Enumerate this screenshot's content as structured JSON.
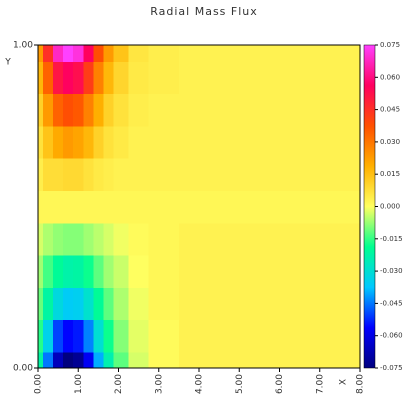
{
  "chart_data": {
    "type": "heatmap",
    "title": "Radial Mass Flux",
    "x_label": "X",
    "y_label": "Y",
    "x": [
      0,
      0.25,
      0.5,
      0.75,
      1.0,
      1.25,
      1.5,
      1.75,
      2.0,
      2.5,
      3,
      4,
      5,
      6,
      7,
      8
    ],
    "y": [
      0,
      0.1,
      0.2,
      0.3,
      0.4,
      0.5,
      0.6,
      0.7,
      0.8,
      0.9,
      1.0
    ],
    "z": [
      [
        -0.022,
        -0.045,
        -0.066,
        -0.075,
        -0.072,
        -0.058,
        -0.04,
        -0.024,
        -0.012,
        -0.003,
        0.001,
        0.003,
        0.003,
        0.003,
        0.003,
        0.003
      ],
      [
        -0.016,
        -0.034,
        -0.05,
        -0.056,
        -0.054,
        -0.044,
        -0.03,
        -0.018,
        -0.009,
        -0.002,
        0.001,
        0.003,
        0.003,
        0.003,
        0.003,
        0.003
      ],
      [
        -0.011,
        -0.022,
        -0.032,
        -0.036,
        -0.035,
        -0.029,
        -0.02,
        -0.012,
        -0.006,
        -0.001,
        0.002,
        0.003,
        0.003,
        0.003,
        0.003,
        0.003
      ],
      [
        -0.007,
        -0.014,
        -0.02,
        -0.023,
        -0.022,
        -0.018,
        -0.012,
        -0.007,
        -0.004,
        0,
        0.002,
        0.003,
        0.003,
        0.003,
        0.003,
        0.003
      ],
      [
        -0.003,
        -0.006,
        -0.008,
        -0.009,
        -0.009,
        -0.007,
        -0.005,
        -0.003,
        -0.001,
        0.001,
        0.002,
        0.003,
        0.003,
        0.003,
        0.003,
        0.003
      ],
      [
        0.002,
        0.002,
        0.002,
        0.002,
        0.002,
        0.002,
        0.002,
        0.002,
        0.002,
        0.002,
        0.002,
        0.002,
        0.002,
        0.002,
        0.002,
        0.002
      ],
      [
        0.004,
        0.008,
        0.008,
        0.009,
        0.009,
        0.007,
        0.005,
        0.004,
        0.003,
        0.003,
        0.003,
        0.003,
        0.003,
        0.003,
        0.003,
        0.003
      ],
      [
        0.007,
        0.014,
        0.02,
        0.023,
        0.021,
        0.017,
        0.011,
        0.007,
        0.005,
        0.003,
        0.003,
        0.003,
        0.003,
        0.003,
        0.003,
        0.003
      ],
      [
        0.011,
        0.023,
        0.034,
        0.038,
        0.036,
        0.028,
        0.019,
        0.011,
        0.007,
        0.004,
        0.003,
        0.003,
        0.003,
        0.003,
        0.003,
        0.003
      ],
      [
        0.017,
        0.034,
        0.051,
        0.056,
        0.053,
        0.042,
        0.028,
        0.017,
        0.01,
        0.005,
        0.004,
        0.003,
        0.003,
        0.003,
        0.003,
        0.003
      ],
      [
        0.023,
        0.045,
        0.068,
        0.075,
        0.071,
        0.056,
        0.038,
        0.023,
        0.014,
        0.006,
        0.004,
        0.003,
        0.003,
        0.003,
        0.003,
        0.003
      ]
    ],
    "xlim": [
      0,
      8
    ],
    "ylim": [
      0,
      1
    ],
    "zlim": [
      -0.075,
      0.075
    ],
    "xticks": [
      {
        "value": 0,
        "label": "0.00"
      },
      {
        "value": 1,
        "label": "1.00"
      },
      {
        "value": 2,
        "label": "2.00"
      },
      {
        "value": 3,
        "label": "3.00"
      },
      {
        "value": 4,
        "label": "4.00"
      },
      {
        "value": 5,
        "label": "5.00"
      },
      {
        "value": 6,
        "label": "6.00"
      },
      {
        "value": 7,
        "label": "7.00"
      },
      {
        "value": 8,
        "label": "8.00"
      }
    ],
    "yticks": [
      {
        "value": 0,
        "label": "0.00"
      },
      {
        "value": 1,
        "label": "1.00"
      }
    ],
    "zticks": [
      0.075,
      {
        "value": 0.06,
        "label": "0.060"
      },
      0.045,
      {
        "value": 0.03,
        "label": "0.030"
      },
      0.015,
      {
        "value": 0,
        "label": "0.000"
      },
      -0.015,
      {
        "value": -0.03,
        "label": "-0.030"
      },
      -0.045,
      {
        "value": -0.06,
        "label": "-0.060"
      },
      -0.075
    ],
    "colors": [
      "#00007f",
      "#0000ff",
      "#00c8ff",
      "#00ff90",
      "#ffff60",
      "#ffb000",
      "#ff5000",
      "#ff0060",
      "#ff40ff"
    ]
  }
}
